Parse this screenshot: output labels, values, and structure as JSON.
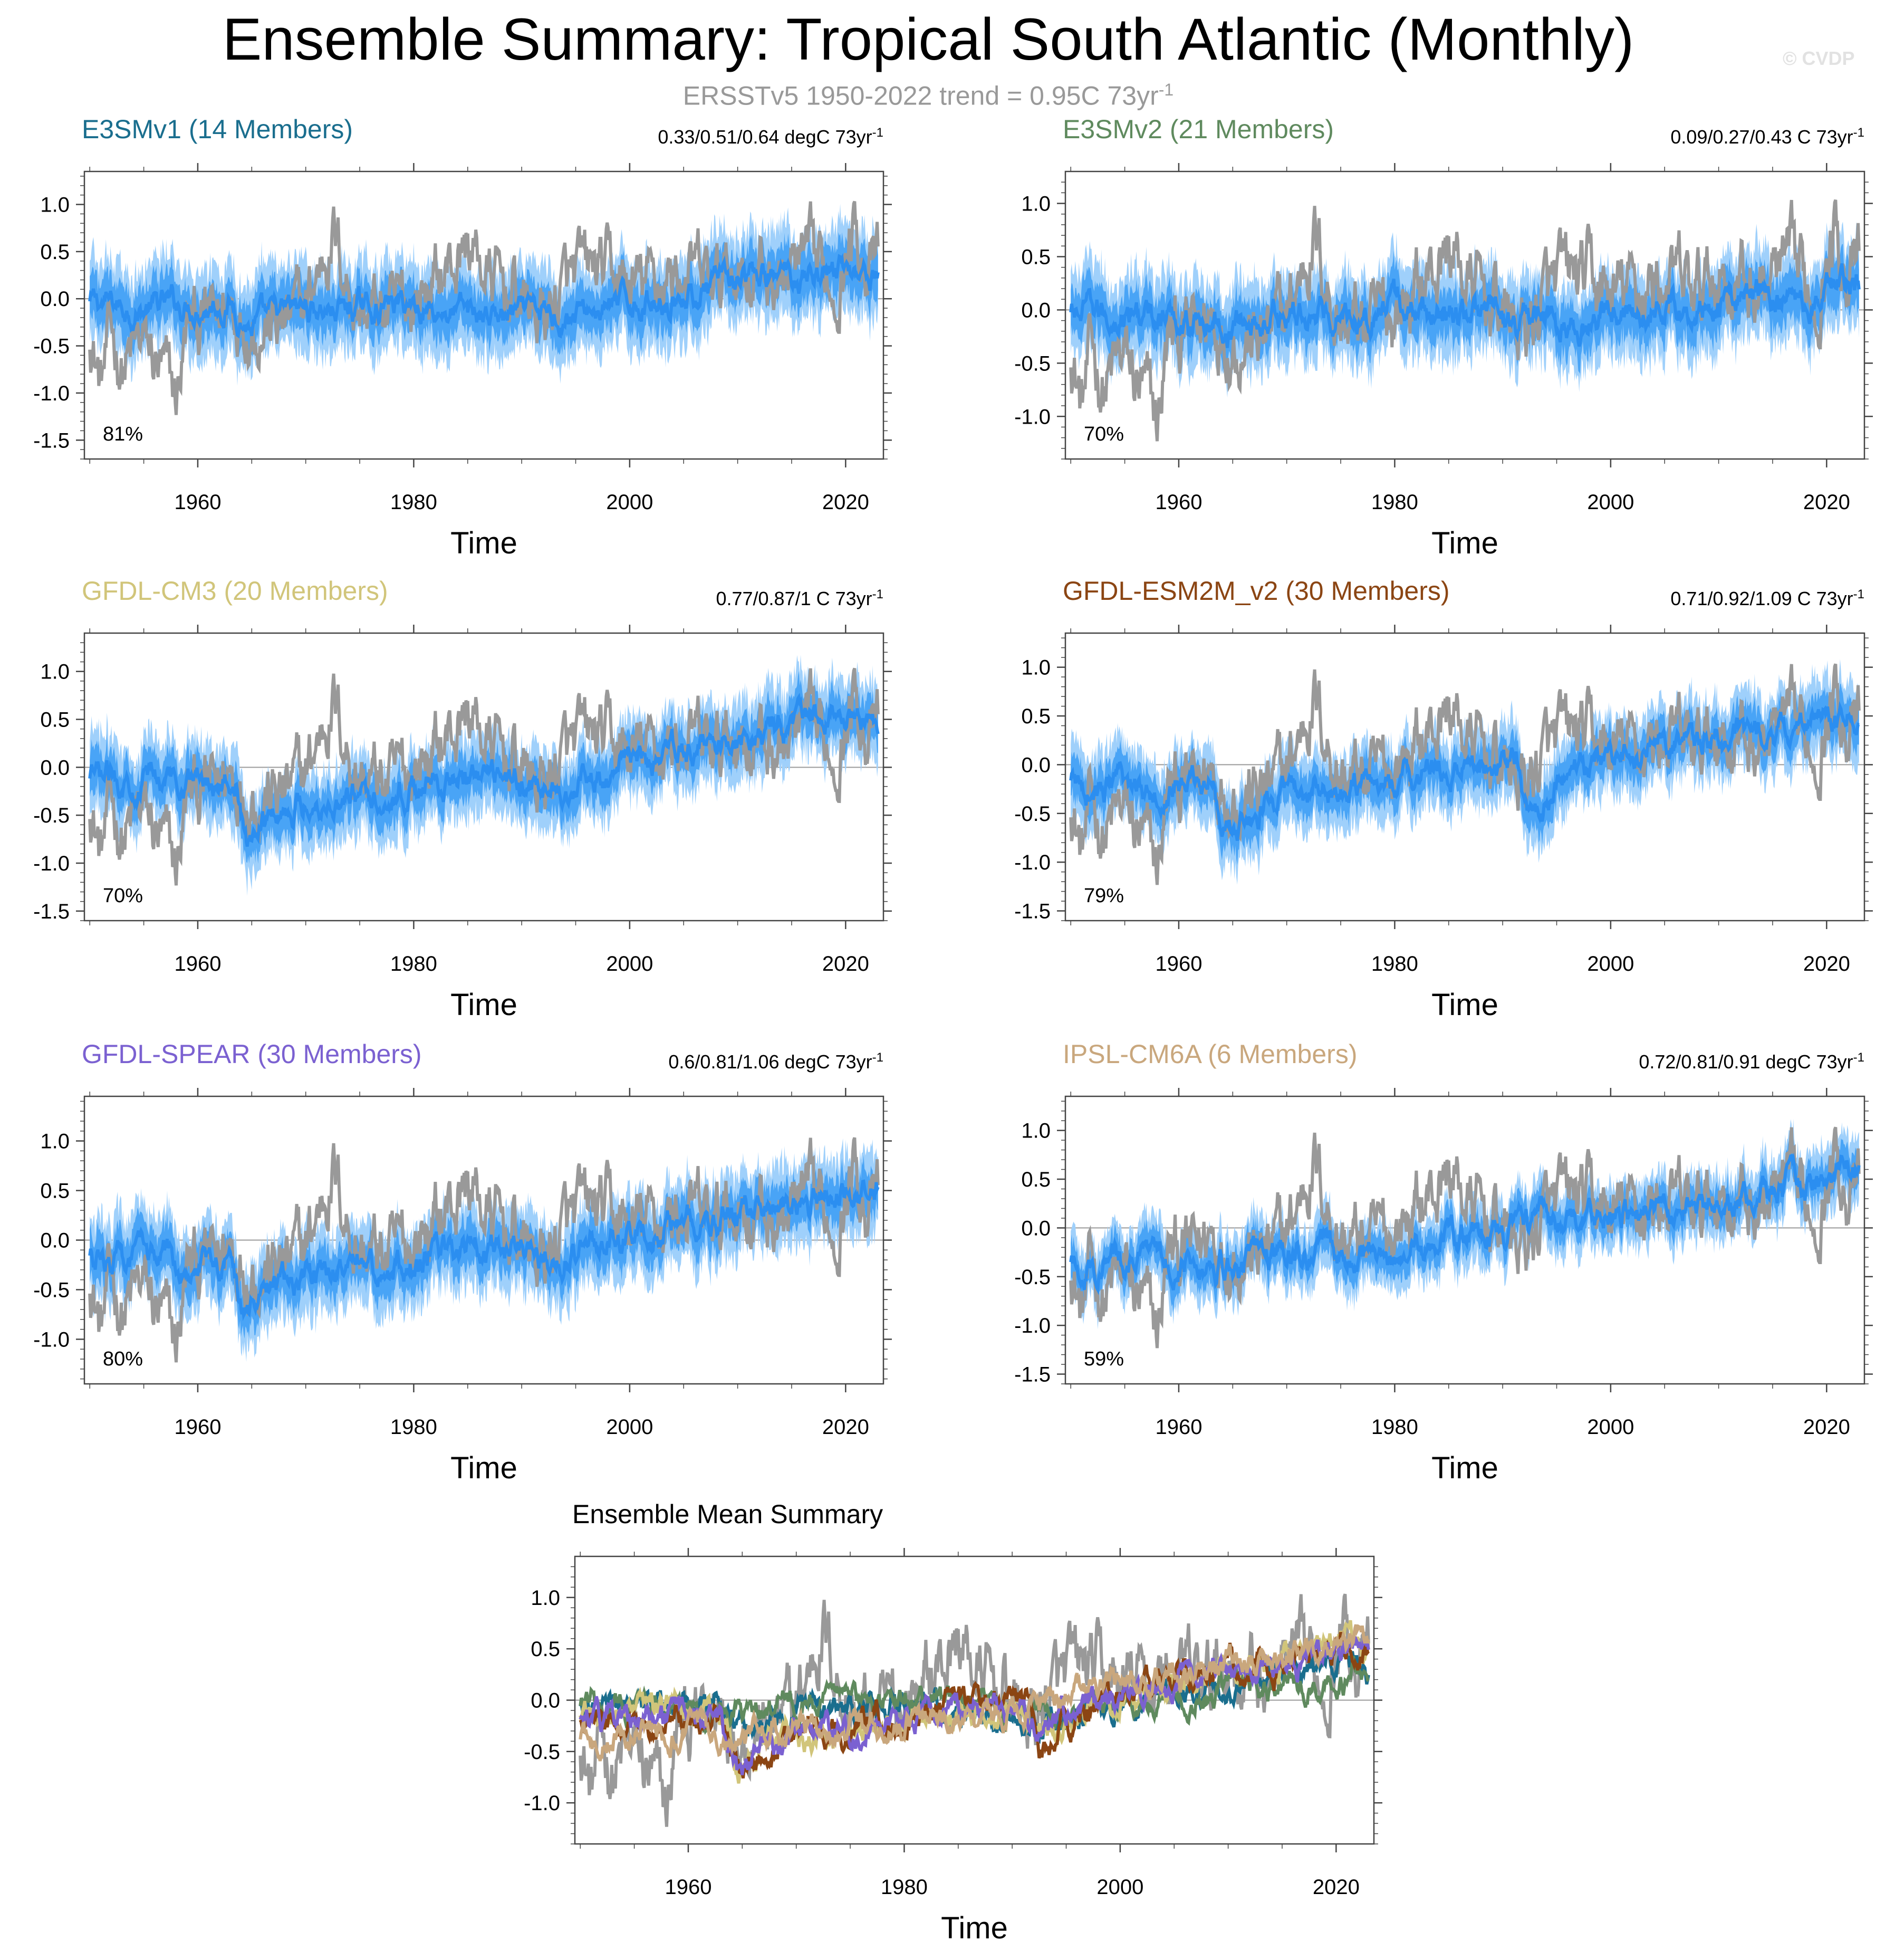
{
  "title": "Ensemble Summary: Tropical South Atlantic (Monthly)",
  "subtitle": "ERSSTv5 1950-2022 trend = 0.95C 73yr",
  "subtitle_sup": "-1",
  "copyright": "© CVDP",
  "colors": {
    "observed": "#999999",
    "ensemble_mean": "#2b8ef0",
    "spread_inner": "#3a9cf5",
    "spread_outer": "#9fd0fb"
  },
  "chart_data": [
    {
      "type": "line",
      "title": "E3SMv1 (14 Members)",
      "title_color": "#1a6e8e",
      "stat": "0.33/0.51/0.64 degC 73yr",
      "stat_sup": "-1",
      "percent": "81%",
      "xlabel": "Time",
      "ylabel": "",
      "xlim": [
        1949.5,
        2023.5
      ],
      "ylim": [
        -1.7,
        1.35
      ],
      "xticks": [
        1960,
        1980,
        2000,
        2020
      ],
      "yticks": [
        -1.5,
        -1.0,
        -0.5,
        0.0,
        0.5,
        1.0
      ],
      "ytick_labels": [
        "-1.5",
        "-1.0",
        "-0.5",
        "0.0",
        "0.5",
        "1.0"
      ],
      "mean_line": {
        "x": [
          1950,
          1955,
          1960,
          1963,
          1965,
          1970,
          1975,
          1980,
          1985,
          1990,
          1995,
          2000,
          2005,
          2010,
          2015,
          2020,
          2023
        ],
        "y": [
          -0.05,
          -0.1,
          -0.05,
          -0.05,
          -0.3,
          -0.1,
          -0.1,
          -0.05,
          -0.15,
          -0.2,
          -0.15,
          -0.05,
          0.05,
          0.15,
          0.25,
          0.35,
          0.25
        ]
      },
      "spread_halfwidth": 0.45,
      "series": [
        {
          "name": "ERSSTv5",
          "values_description": "observed"
        },
        {
          "name": "Ensemble mean"
        }
      ]
    },
    {
      "type": "line",
      "title": "E3SMv2 (21 Members)",
      "title_color": "#5f8a5e",
      "stat": "0.09/0.27/0.43 C 73yr",
      "stat_sup": "-1",
      "percent": "70%",
      "xlabel": "Time",
      "ylabel": "",
      "xlim": [
        1949.5,
        2023.5
      ],
      "ylim": [
        -1.4,
        1.3
      ],
      "xticks": [
        1960,
        1980,
        2000,
        2020
      ],
      "yticks": [
        -1.0,
        -0.5,
        0.0,
        0.5,
        1.0
      ],
      "ytick_labels": [
        "-1.0",
        "-0.5",
        "0.0",
        "0.5",
        "1.0"
      ],
      "mean_line": {
        "x": [
          1950,
          1955,
          1960,
          1965,
          1970,
          1975,
          1980,
          1985,
          1990,
          1995,
          2000,
          2005,
          2010,
          2015,
          2020,
          2023
        ],
        "y": [
          -0.05,
          -0.05,
          -0.1,
          -0.15,
          -0.05,
          0.0,
          0.0,
          -0.05,
          -0.05,
          -0.15,
          0.0,
          0.05,
          0.1,
          0.15,
          0.2,
          0.3
        ]
      },
      "spread_halfwidth": 0.4,
      "series": [
        {
          "name": "ERSSTv5"
        },
        {
          "name": "Ensemble mean"
        }
      ]
    },
    {
      "type": "line",
      "title": "GFDL-CM3 (20 Members)",
      "title_color": "#d1c57a",
      "stat": "0.77/0.87/1 C 73yr",
      "stat_sup": "-1",
      "percent": "70%",
      "xlabel": "Time",
      "ylabel": "",
      "xlim": [
        1949.5,
        2023.5
      ],
      "ylim": [
        -1.6,
        1.4
      ],
      "xticks": [
        1960,
        1980,
        2000,
        2020
      ],
      "yticks": [
        -1.5,
        -1.0,
        -0.5,
        0.0,
        0.5,
        1.0
      ],
      "ytick_labels": [
        "-1.5",
        "-1.0",
        "-0.5",
        "0.0",
        "0.5",
        "1.0"
      ],
      "mean_line": {
        "x": [
          1950,
          1955,
          1960,
          1963.5,
          1964.5,
          1966,
          1970,
          1975,
          1980,
          1985,
          1990,
          1992,
          1995,
          2000,
          2005,
          2010,
          2015,
          2020,
          2023
        ],
        "y": [
          -0.15,
          -0.1,
          -0.1,
          -0.1,
          -0.85,
          -0.5,
          -0.35,
          -0.3,
          -0.2,
          -0.15,
          -0.15,
          -0.3,
          -0.15,
          0.0,
          0.15,
          0.3,
          0.4,
          0.6,
          0.5
        ]
      },
      "spread_halfwidth": 0.4,
      "series": [
        {
          "name": "ERSSTv5"
        },
        {
          "name": "Ensemble mean"
        }
      ]
    },
    {
      "type": "line",
      "title": "GFDL-ESM2M_v2 (30 Members)",
      "title_color": "#8b4513",
      "stat": "0.71/0.92/1.09 C 73yr",
      "stat_sup": "-1",
      "percent": "79%",
      "xlabel": "Time",
      "ylabel": "",
      "xlim": [
        1949.5,
        2023.5
      ],
      "ylim": [
        -1.6,
        1.35
      ],
      "xticks": [
        1960,
        1980,
        2000,
        2020
      ],
      "yticks": [
        -1.5,
        -1.0,
        -0.5,
        0.0,
        0.5,
        1.0
      ],
      "ytick_labels": [
        "-1.5",
        "-1.0",
        "-0.5",
        "0.0",
        "0.5",
        "1.0"
      ],
      "mean_line": {
        "x": [
          1950,
          1955,
          1960,
          1963,
          1965,
          1968,
          1970,
          1975,
          1980,
          1985,
          1990,
          1991.5,
          1992.5,
          1995,
          2000,
          2005,
          2010,
          2015,
          2020,
          2023
        ],
        "y": [
          -0.2,
          -0.25,
          -0.2,
          -0.2,
          -0.75,
          -0.4,
          -0.3,
          -0.25,
          -0.15,
          -0.1,
          0.0,
          0.05,
          -0.6,
          -0.2,
          0.1,
          0.2,
          0.3,
          0.35,
          0.5,
          0.55
        ]
      },
      "spread_halfwidth": 0.38,
      "series": [
        {
          "name": "ERSSTv5"
        },
        {
          "name": "Ensemble mean"
        }
      ]
    },
    {
      "type": "line",
      "title": "GFDL-SPEAR (30 Members)",
      "title_color": "#7b61d1",
      "stat": "0.6/0.81/1.06 degC 73yr",
      "stat_sup": "-1",
      "percent": "80%",
      "xlabel": "Time",
      "ylabel": "",
      "xlim": [
        1949.5,
        2023.5
      ],
      "ylim": [
        -1.45,
        1.45
      ],
      "xticks": [
        1960,
        1980,
        2000,
        2020
      ],
      "yticks": [
        -1.0,
        -0.5,
        0.0,
        0.5,
        1.0
      ],
      "ytick_labels": [
        "-1.0",
        "-0.5",
        "0.0",
        "0.5",
        "1.0"
      ],
      "mean_line": {
        "x": [
          1950,
          1955,
          1960,
          1963,
          1964.5,
          1967,
          1970,
          1975,
          1980,
          1985,
          1990,
          1992,
          1995,
          2000,
          2005,
          2010,
          2015,
          2020,
          2023
        ],
        "y": [
          -0.2,
          -0.2,
          -0.2,
          -0.2,
          -0.8,
          -0.45,
          -0.35,
          -0.3,
          -0.2,
          -0.1,
          -0.05,
          -0.25,
          -0.1,
          0.05,
          0.2,
          0.25,
          0.35,
          0.5,
          0.6
        ]
      },
      "spread_halfwidth": 0.4,
      "series": [
        {
          "name": "ERSSTv5"
        },
        {
          "name": "Ensemble mean"
        }
      ]
    },
    {
      "type": "line",
      "title": "IPSL-CM6A (6 Members)",
      "title_color": "#c9a77d",
      "stat": "0.72/0.81/0.91 degC 73yr",
      "stat_sup": "-1",
      "percent": "59%",
      "xlabel": "Time",
      "ylabel": "",
      "xlim": [
        1949.5,
        2023.5
      ],
      "ylim": [
        -1.6,
        1.35
      ],
      "xticks": [
        1960,
        1980,
        2000,
        2020
      ],
      "yticks": [
        -1.5,
        -1.0,
        -0.5,
        0.0,
        0.5,
        1.0
      ],
      "ytick_labels": [
        "-1.5",
        "-1.0",
        "-0.5",
        "0.0",
        "0.5",
        "1.0"
      ],
      "mean_line": {
        "x": [
          1950,
          1955,
          1960,
          1965,
          1970,
          1975,
          1980,
          1985,
          1990,
          1995,
          2000,
          2005,
          2010,
          2015,
          2020,
          2023
        ],
        "y": [
          -0.4,
          -0.3,
          -0.3,
          -0.35,
          -0.2,
          -0.3,
          -0.25,
          -0.1,
          -0.05,
          0.05,
          0.15,
          0.2,
          0.3,
          0.4,
          0.5,
          0.65
        ]
      },
      "spread_halfwidth": 0.32,
      "series": [
        {
          "name": "ERSSTv5"
        },
        {
          "name": "Ensemble mean"
        }
      ]
    },
    {
      "type": "line",
      "title": "Ensemble Mean Summary",
      "title_color": "#000000",
      "xlabel": "Time",
      "ylabel": "",
      "xlim": [
        1949.5,
        2023.5
      ],
      "ylim": [
        -1.4,
        1.4
      ],
      "xticks": [
        1960,
        1980,
        2000,
        2020
      ],
      "yticks": [
        -1.0,
        -0.5,
        0.0,
        0.5,
        1.0
      ],
      "ytick_labels": [
        "-1.0",
        "-0.5",
        "0.0",
        "0.5",
        "1.0"
      ],
      "series": [
        {
          "name": "ERSSTv5",
          "color": "#999999"
        },
        {
          "name": "E3SMv1",
          "color": "#1a6e8e"
        },
        {
          "name": "E3SMv2",
          "color": "#5f8a5e"
        },
        {
          "name": "GFDL-CM3",
          "color": "#d1c57a"
        },
        {
          "name": "GFDL-ESM2M_v2",
          "color": "#8b4513"
        },
        {
          "name": "GFDL-SPEAR",
          "color": "#7b61d1"
        },
        {
          "name": "IPSL-CM6A",
          "color": "#c9a77d"
        }
      ]
    }
  ]
}
